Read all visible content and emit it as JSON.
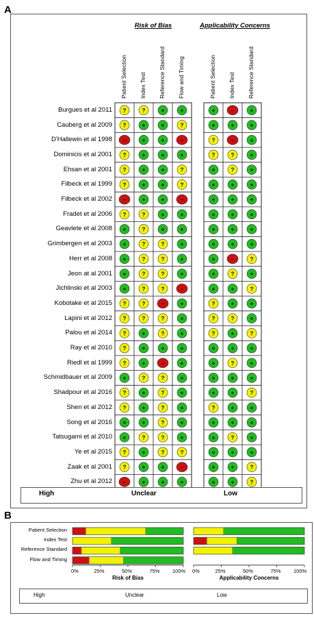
{
  "panels": {
    "a": "A",
    "b": "B"
  },
  "colors": {
    "high": "#cc1111",
    "unclear": "#f2f200",
    "low": "#22bb22"
  },
  "chart_data": [
    {
      "type": "table",
      "groups": [
        "Risk of Bias",
        "Applicability Concerns"
      ],
      "columns": [
        "Patient Selection",
        "Index Test",
        "Reference Standard",
        "Flow and Timing",
        "Patient Selection",
        "Index Test",
        "Reference Standard"
      ],
      "studies": [
        "Burgues et al 2011",
        "Cauberg et al 2009",
        "D'Hallewin et al 1998",
        "Dominicis et al 2001",
        "Ehsan et al 2001",
        "Filbeck et al 1999",
        "Filbeck et al 2002",
        "Fradet et al 2006",
        "Geavlete  et al 2008",
        "Grimbergen et al 2003",
        "Herr et al 2008",
        "Jeon at al 2001",
        "Jichlinski et al 2003",
        "Kobotake et al 2015",
        "Lapini et al 2012",
        "Palou et al 2014",
        "Ray et al 2010",
        "Riedl et al 1999",
        "Schmidbauer et al 2009",
        "Shadpour et al 2016",
        "Shen et al 2012",
        "Song et al 2016",
        "Tatsugami et al 2010",
        "Ye et al 2015",
        "Zaak et al 2001",
        "Zhu et al 2012"
      ],
      "ratings": [
        [
          "U",
          "U",
          "L",
          "L",
          "L",
          "H",
          "L"
        ],
        [
          "U",
          "L",
          "L",
          "U",
          "L",
          "L",
          "L"
        ],
        [
          "H",
          "L",
          "L",
          "H",
          "U",
          "H",
          "L"
        ],
        [
          "U",
          "L",
          "L",
          "L",
          "U",
          "U",
          "L"
        ],
        [
          "U",
          "L",
          "L",
          "U",
          "L",
          "U",
          "L"
        ],
        [
          "U",
          "L",
          "L",
          "U",
          "L",
          "L",
          "L"
        ],
        [
          "H",
          "L",
          "L",
          "H",
          "L",
          "L",
          "L"
        ],
        [
          "U",
          "U",
          "L",
          "L",
          "L",
          "L",
          "L"
        ],
        [
          "L",
          "U",
          "L",
          "L",
          "L",
          "L",
          "L"
        ],
        [
          "L",
          "U",
          "U",
          "L",
          "L",
          "L",
          "L"
        ],
        [
          "L",
          "U",
          "U",
          "L",
          "L",
          "H",
          "U"
        ],
        [
          "L",
          "U",
          "U",
          "L",
          "L",
          "U",
          "L"
        ],
        [
          "L",
          "U",
          "U",
          "H",
          "L",
          "L",
          "U"
        ],
        [
          "U",
          "U",
          "H",
          "L",
          "U",
          "L",
          "L"
        ],
        [
          "U",
          "U",
          "U",
          "L",
          "U",
          "U",
          "L"
        ],
        [
          "U",
          "L",
          "U",
          "L",
          "U",
          "L",
          "U"
        ],
        [
          "U",
          "L",
          "L",
          "L",
          "L",
          "L",
          "L"
        ],
        [
          "U",
          "L",
          "H",
          "L",
          "L",
          "U",
          "L"
        ],
        [
          "L",
          "U",
          "U",
          "L",
          "L",
          "L",
          "L"
        ],
        [
          "U",
          "L",
          "U",
          "L",
          "L",
          "L",
          "U"
        ],
        [
          "U",
          "L",
          "U",
          "L",
          "U",
          "L",
          "L"
        ],
        [
          "L",
          "L",
          "U",
          "L",
          "L",
          "L",
          "L"
        ],
        [
          "L",
          "U",
          "U",
          "L",
          "L",
          "U",
          "L"
        ],
        [
          "U",
          "L",
          "U",
          "U",
          "L",
          "L",
          "L"
        ],
        [
          "U",
          "L",
          "L",
          "H",
          "L",
          "L",
          "U"
        ],
        [
          "H",
          "L",
          "L",
          "L",
          "L",
          "L",
          "U"
        ]
      ],
      "legend": [
        {
          "key": "H",
          "label": "High"
        },
        {
          "key": "U",
          "label": "Unclear"
        },
        {
          "key": "L",
          "label": "Low"
        }
      ]
    },
    {
      "type": "bar",
      "stacked": true,
      "orientation": "horizontal",
      "categories": [
        "Patient Selection",
        "Index Test",
        "Reference Standard",
        "Flow and Timing"
      ],
      "panels": [
        {
          "xlabel": "Risk of Bias",
          "series": [
            {
              "name": "High",
              "values": [
                12,
                0,
                8,
                15
              ]
            },
            {
              "name": "Unclear",
              "values": [
                54,
                35,
                35,
                31
              ]
            },
            {
              "name": "Low",
              "values": [
                34,
                65,
                57,
                54
              ]
            }
          ]
        },
        {
          "xlabel": "Applicability Concerns",
          "series": [
            {
              "name": "High",
              "values": [
                0,
                12,
                0
              ]
            },
            {
              "name": "Unclear",
              "values": [
                27,
                27,
                35
              ]
            },
            {
              "name": "Low",
              "values": [
                73,
                61,
                65
              ]
            }
          ]
        }
      ],
      "ticks": [
        "0%",
        "25%",
        "50%",
        "75%",
        "100%"
      ],
      "xlim": [
        0,
        100
      ],
      "legend": [
        "High",
        "Unclear",
        "Low"
      ]
    }
  ]
}
